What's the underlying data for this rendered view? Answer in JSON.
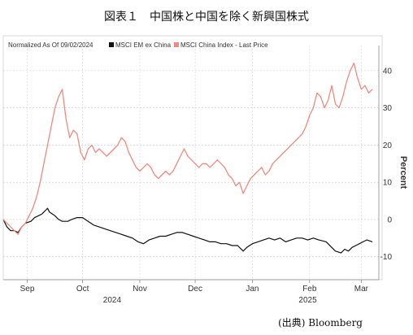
{
  "figure": {
    "title": "図表１　中国株と中国を除く新興国株式",
    "source": "(出典) Bloomberg"
  },
  "chart_data": {
    "type": "line",
    "normalized_label": "Normalized As Of 09/02/2024",
    "ylabel": "Percent",
    "ylim": [
      -14,
      45
    ],
    "yticks": [
      -10,
      0,
      10,
      20,
      30,
      40
    ],
    "x_start": "2024-09-02",
    "x_end": "2025-03-21",
    "month_ticks": [
      {
        "label": "Sep",
        "date": "2024-09-15"
      },
      {
        "label": "Oct",
        "date": "2024-10-15"
      },
      {
        "label": "Nov",
        "date": "2024-11-15"
      },
      {
        "label": "Dec",
        "date": "2024-12-15"
      },
      {
        "label": "Jan",
        "date": "2025-01-15"
      },
      {
        "label": "Feb",
        "date": "2025-02-15"
      },
      {
        "label": "Mar",
        "date": "2025-03-15"
      }
    ],
    "year_labels": [
      {
        "label": "2024",
        "date": "2024-10-31"
      },
      {
        "label": "2025",
        "date": "2025-02-14"
      }
    ],
    "grid": true,
    "legend_position": "top-left",
    "series": [
      {
        "name": "MSCI EM ex China",
        "color": "#111111",
        "points": [
          [
            "2024-09-02",
            0
          ],
          [
            "2024-09-04",
            -2
          ],
          [
            "2024-09-06",
            -3
          ],
          [
            "2024-09-08",
            -3
          ],
          [
            "2024-09-10",
            -3.5
          ],
          [
            "2024-09-12",
            -2
          ],
          [
            "2024-09-14",
            -1
          ],
          [
            "2024-09-17",
            -0.5
          ],
          [
            "2024-09-19",
            0.5
          ],
          [
            "2024-09-21",
            1
          ],
          [
            "2024-09-23",
            1.5
          ],
          [
            "2024-09-25",
            2.5
          ],
          [
            "2024-09-26",
            3
          ],
          [
            "2024-09-27",
            2
          ],
          [
            "2024-09-30",
            1
          ],
          [
            "2024-10-02",
            0
          ],
          [
            "2024-10-04",
            -0.5
          ],
          [
            "2024-10-07",
            -0.5
          ],
          [
            "2024-10-09",
            0
          ],
          [
            "2024-10-12",
            0.5
          ],
          [
            "2024-10-15",
            0.5
          ],
          [
            "2024-10-18",
            -0.5
          ],
          [
            "2024-10-21",
            -1.5
          ],
          [
            "2024-10-24",
            -2
          ],
          [
            "2024-10-27",
            -2.5
          ],
          [
            "2024-10-30",
            -3
          ],
          [
            "2024-11-02",
            -3.5
          ],
          [
            "2024-11-05",
            -4
          ],
          [
            "2024-11-08",
            -4.5
          ],
          [
            "2024-11-11",
            -5
          ],
          [
            "2024-11-14",
            -6
          ],
          [
            "2024-11-17",
            -6.5
          ],
          [
            "2024-11-20",
            -5.5
          ],
          [
            "2024-11-23",
            -5
          ],
          [
            "2024-11-26",
            -4.5
          ],
          [
            "2024-11-29",
            -4.5
          ],
          [
            "2024-12-02",
            -4
          ],
          [
            "2024-12-05",
            -3.5
          ],
          [
            "2024-12-08",
            -3.5
          ],
          [
            "2024-12-11",
            -4
          ],
          [
            "2024-12-14",
            -4.5
          ],
          [
            "2024-12-17",
            -5
          ],
          [
            "2024-12-20",
            -5.5
          ],
          [
            "2024-12-23",
            -6
          ],
          [
            "2024-12-26",
            -6
          ],
          [
            "2024-12-29",
            -6.5
          ],
          [
            "2025-01-01",
            -6.5
          ],
          [
            "2025-01-04",
            -7
          ],
          [
            "2025-01-07",
            -7
          ],
          [
            "2025-01-10",
            -8.5
          ],
          [
            "2025-01-12",
            -7.5
          ],
          [
            "2025-01-15",
            -6.5
          ],
          [
            "2025-01-18",
            -6
          ],
          [
            "2025-01-21",
            -5.5
          ],
          [
            "2025-01-24",
            -5
          ],
          [
            "2025-01-27",
            -5.5
          ],
          [
            "2025-01-30",
            -5
          ],
          [
            "2025-02-02",
            -6
          ],
          [
            "2025-02-05",
            -5.5
          ],
          [
            "2025-02-08",
            -5
          ],
          [
            "2025-02-11",
            -5
          ],
          [
            "2025-02-14",
            -5.5
          ],
          [
            "2025-02-17",
            -5
          ],
          [
            "2025-02-20",
            -5.5
          ],
          [
            "2025-02-24",
            -6
          ],
          [
            "2025-02-27",
            -7.5
          ],
          [
            "2025-03-01",
            -8.5
          ],
          [
            "2025-03-04",
            -9
          ],
          [
            "2025-03-06",
            -8
          ],
          [
            "2025-03-08",
            -8.5
          ],
          [
            "2025-03-10",
            -7.5
          ],
          [
            "2025-03-12",
            -7
          ],
          [
            "2025-03-14",
            -6.5
          ],
          [
            "2025-03-16",
            -6
          ],
          [
            "2025-03-18",
            -5.5
          ],
          [
            "2025-03-21",
            -6
          ]
        ]
      },
      {
        "name": "MSCI China Index - Last Price",
        "color": "#f08a80",
        "points": [
          [
            "2024-09-02",
            0
          ],
          [
            "2024-09-04",
            -1
          ],
          [
            "2024-09-06",
            -2
          ],
          [
            "2024-09-08",
            -3
          ],
          [
            "2024-09-10",
            -4
          ],
          [
            "2024-09-12",
            -2
          ],
          [
            "2024-09-14",
            -1
          ],
          [
            "2024-09-16",
            1
          ],
          [
            "2024-09-18",
            3
          ],
          [
            "2024-09-20",
            6
          ],
          [
            "2024-09-22",
            10
          ],
          [
            "2024-09-24",
            15
          ],
          [
            "2024-09-26",
            20
          ],
          [
            "2024-09-28",
            25
          ],
          [
            "2024-09-30",
            30
          ],
          [
            "2024-10-02",
            33
          ],
          [
            "2024-10-04",
            35
          ],
          [
            "2024-10-06",
            27
          ],
          [
            "2024-10-08",
            22
          ],
          [
            "2024-10-10",
            24
          ],
          [
            "2024-10-12",
            23
          ],
          [
            "2024-10-14",
            18
          ],
          [
            "2024-10-16",
            16
          ],
          [
            "2024-10-18",
            19
          ],
          [
            "2024-10-20",
            20
          ],
          [
            "2024-10-22",
            18
          ],
          [
            "2024-10-24",
            19
          ],
          [
            "2024-10-26",
            18
          ],
          [
            "2024-10-28",
            17
          ],
          [
            "2024-10-30",
            18
          ],
          [
            "2024-11-01",
            19
          ],
          [
            "2024-11-03",
            20
          ],
          [
            "2024-11-05",
            22
          ],
          [
            "2024-11-07",
            21
          ],
          [
            "2024-11-09",
            18
          ],
          [
            "2024-11-11",
            16
          ],
          [
            "2024-11-13",
            14
          ],
          [
            "2024-11-15",
            13
          ],
          [
            "2024-11-17",
            14
          ],
          [
            "2024-11-19",
            15
          ],
          [
            "2024-11-21",
            14
          ],
          [
            "2024-11-23",
            12
          ],
          [
            "2024-11-25",
            11
          ],
          [
            "2024-11-27",
            12
          ],
          [
            "2024-11-29",
            13
          ],
          [
            "2024-12-01",
            12
          ],
          [
            "2024-12-03",
            13
          ],
          [
            "2024-12-05",
            15
          ],
          [
            "2024-12-07",
            17
          ],
          [
            "2024-12-09",
            19
          ],
          [
            "2024-12-11",
            17
          ],
          [
            "2024-12-13",
            16
          ],
          [
            "2024-12-15",
            15
          ],
          [
            "2024-12-17",
            14
          ],
          [
            "2024-12-19",
            15
          ],
          [
            "2024-12-21",
            15
          ],
          [
            "2024-12-23",
            14
          ],
          [
            "2024-12-25",
            15
          ],
          [
            "2024-12-27",
            16
          ],
          [
            "2024-12-29",
            15
          ],
          [
            "2024-12-31",
            14
          ],
          [
            "2025-01-02",
            12
          ],
          [
            "2025-01-04",
            11
          ],
          [
            "2025-01-06",
            9
          ],
          [
            "2025-01-08",
            10
          ],
          [
            "2025-01-10",
            7
          ],
          [
            "2025-01-12",
            9
          ],
          [
            "2025-01-14",
            11
          ],
          [
            "2025-01-16",
            12
          ],
          [
            "2025-01-18",
            13
          ],
          [
            "2025-01-20",
            14
          ],
          [
            "2025-01-22",
            12
          ],
          [
            "2025-01-24",
            13
          ],
          [
            "2025-01-26",
            15
          ],
          [
            "2025-01-28",
            16
          ],
          [
            "2025-01-30",
            17
          ],
          [
            "2025-02-01",
            18
          ],
          [
            "2025-02-03",
            19
          ],
          [
            "2025-02-05",
            20
          ],
          [
            "2025-02-07",
            21
          ],
          [
            "2025-02-09",
            22
          ],
          [
            "2025-02-11",
            23
          ],
          [
            "2025-02-13",
            25
          ],
          [
            "2025-02-15",
            28
          ],
          [
            "2025-02-17",
            30
          ],
          [
            "2025-02-19",
            34
          ],
          [
            "2025-02-21",
            33
          ],
          [
            "2025-02-23",
            30
          ],
          [
            "2025-02-25",
            32
          ],
          [
            "2025-02-27",
            36
          ],
          [
            "2025-03-01",
            31
          ],
          [
            "2025-03-03",
            30
          ],
          [
            "2025-03-05",
            33
          ],
          [
            "2025-03-07",
            37
          ],
          [
            "2025-03-09",
            40
          ],
          [
            "2025-03-11",
            42
          ],
          [
            "2025-03-13",
            38
          ],
          [
            "2025-03-15",
            35
          ],
          [
            "2025-03-17",
            36
          ],
          [
            "2025-03-19",
            34
          ],
          [
            "2025-03-21",
            35
          ]
        ]
      }
    ]
  }
}
